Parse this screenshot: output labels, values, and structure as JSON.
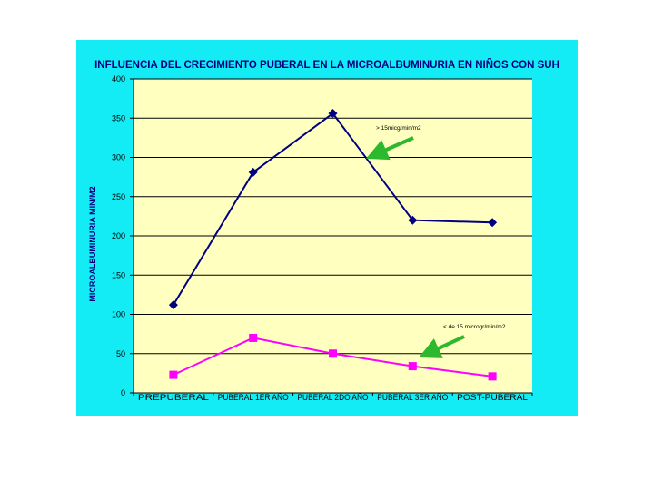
{
  "chart_data": {
    "type": "line",
    "title": "INFLUENCIA DEL CRECIMIENTO PUBERAL EN LA MICROALBUMINURIA EN NIÑOS CON SUH",
    "xlabel": "",
    "ylabel": "MICROALBUMINURIA MIN/M2",
    "categories": [
      "PREPUBERAL",
      "PUBERAL 1ER AÑO",
      "PUBERAL 2DO AÑO",
      "PUBERAL 3ER AÑO",
      "POST-PUBERAL"
    ],
    "yticks": [
      "0",
      "50",
      "100",
      "150",
      "200",
      "250",
      "300",
      "350",
      "400"
    ],
    "ylim": [
      0,
      400
    ],
    "grid": true,
    "legend": "none",
    "series": [
      {
        "values": [
          112,
          281,
          356,
          220,
          217
        ],
        "color": "#000080",
        "marker": "diamond"
      },
      {
        "values": [
          23,
          70,
          50,
          34,
          21
        ],
        "color": "#ff00ff",
        "marker": "square"
      }
    ],
    "annotations": [
      {
        "text": "> 15micg/min/m2",
        "arrow_color": "#2eb82e"
      },
      {
        "text": "< de 15 microgr/min/m2",
        "arrow_color": "#2eb82e"
      }
    ],
    "colors": {
      "panel": "#13ecf5",
      "plot_area": "#ffffc0",
      "title": "#000080"
    }
  }
}
